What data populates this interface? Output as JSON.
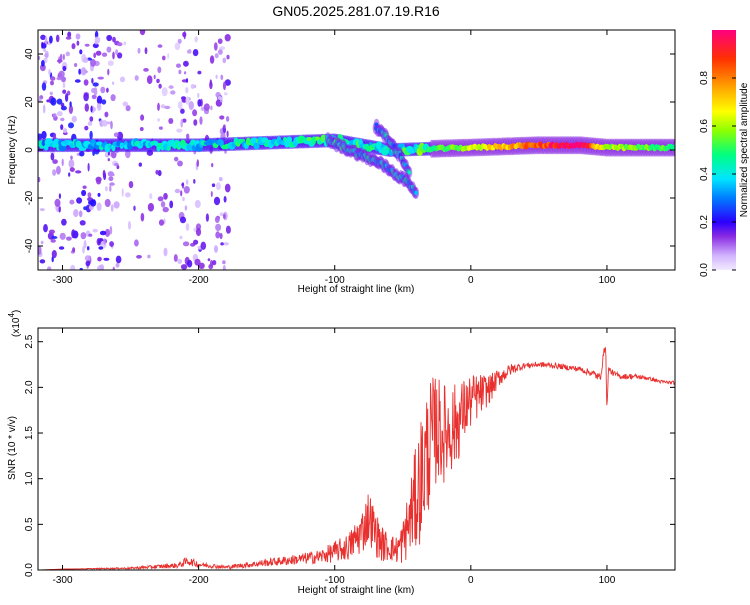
{
  "title": "GN05.2025.281.07.19.R16",
  "chart_data": [
    {
      "type": "heatmap",
      "xlabel": "Height of straight line (km)",
      "ylabel": "Frequency (Hz)",
      "xlim": [
        -318,
        150
      ],
      "ylim": [
        -50,
        50
      ],
      "x_ticks": [
        -300,
        -200,
        -100,
        0,
        100
      ],
      "y_ticks": [
        -40,
        -20,
        0,
        20,
        40
      ],
      "colorbar": {
        "label": "Normalized spectral amplitude",
        "range": [
          0,
          1
        ],
        "ticks": [
          0.0,
          0.2,
          0.4,
          0.6,
          0.8
        ]
      },
      "features": [
        {
          "name": "scattered noise",
          "x_range": [
            -318,
            -178
          ],
          "y_range": [
            -50,
            50
          ],
          "amplitude": 0.15
        },
        {
          "name": "main line",
          "x": [
            -300,
            -200,
            -100,
            -60,
            0,
            50,
            80,
            100,
            150
          ],
          "y": [
            2,
            2,
            4,
            0,
            1,
            2,
            2,
            1,
            1
          ],
          "amplitude": [
            0.35,
            0.4,
            0.45,
            0.4,
            0.6,
            0.85,
            1.0,
            0.6,
            0.5
          ]
        },
        {
          "name": "descending branch",
          "x": [
            -105,
            -85,
            -65,
            -45,
            -40
          ],
          "y": [
            4,
            -1,
            -6,
            -14,
            -18
          ],
          "amplitude": 0.4
        },
        {
          "name": "secondary branch",
          "x": [
            -70,
            -60,
            -50,
            -45
          ],
          "y": [
            10,
            4,
            -4,
            -10
          ],
          "amplitude": 0.35
        }
      ]
    },
    {
      "type": "line",
      "xlabel": "Height of straight line (km)",
      "ylabel": "SNR (10 * v/v)",
      "y_multiplier": "(x10",
      "y_multiplier_exp": "4",
      "y_multiplier_close": ")",
      "xlim": [
        -318,
        150
      ],
      "ylim": [
        0,
        2.65
      ],
      "x_ticks": [
        -300,
        -200,
        -100,
        0,
        100
      ],
      "y_ticks": [
        0.0,
        0.5,
        1.0,
        1.5,
        2.0,
        2.5
      ],
      "series": [
        {
          "name": "SNR",
          "color": "#e8302e",
          "x": [
            -318,
            -300,
            -250,
            -215,
            -208,
            -200,
            -180,
            -150,
            -125,
            -110,
            -90,
            -80,
            -75,
            -70,
            -65,
            -60,
            -55,
            -50,
            -45,
            -40,
            -35,
            -30,
            -25,
            -20,
            -15,
            -10,
            -5,
            0,
            5,
            10,
            15,
            20,
            25,
            30,
            40,
            50,
            60,
            70,
            80,
            90,
            95,
            99,
            100,
            101,
            105,
            110,
            120,
            130,
            140,
            150
          ],
          "y": [
            0.0,
            0.01,
            0.02,
            0.05,
            0.1,
            0.06,
            0.03,
            0.08,
            0.12,
            0.15,
            0.25,
            0.42,
            0.6,
            0.4,
            0.28,
            0.25,
            0.22,
            0.3,
            0.55,
            0.8,
            1.1,
            1.4,
            1.55,
            1.5,
            1.55,
            1.6,
            1.75,
            1.85,
            1.9,
            1.95,
            2.0,
            2.1,
            2.15,
            2.2,
            2.24,
            2.25,
            2.24,
            2.22,
            2.2,
            2.15,
            2.1,
            2.5,
            1.7,
            2.2,
            2.15,
            2.12,
            2.12,
            2.1,
            2.06,
            2.05
          ],
          "noise": [
            0.0,
            0.0,
            0.01,
            0.03,
            0.05,
            0.03,
            0.02,
            0.04,
            0.06,
            0.08,
            0.15,
            0.25,
            0.3,
            0.25,
            0.2,
            0.15,
            0.15,
            0.25,
            0.4,
            0.6,
            0.75,
            0.7,
            0.6,
            0.55,
            0.5,
            0.45,
            0.35,
            0.3,
            0.25,
            0.2,
            0.15,
            0.1,
            0.08,
            0.06,
            0.03,
            0.03,
            0.03,
            0.03,
            0.03,
            0.04,
            0.05,
            0.05,
            0.05,
            0.04,
            0.03,
            0.03,
            0.03,
            0.02,
            0.02,
            0.02
          ]
        }
      ]
    }
  ]
}
